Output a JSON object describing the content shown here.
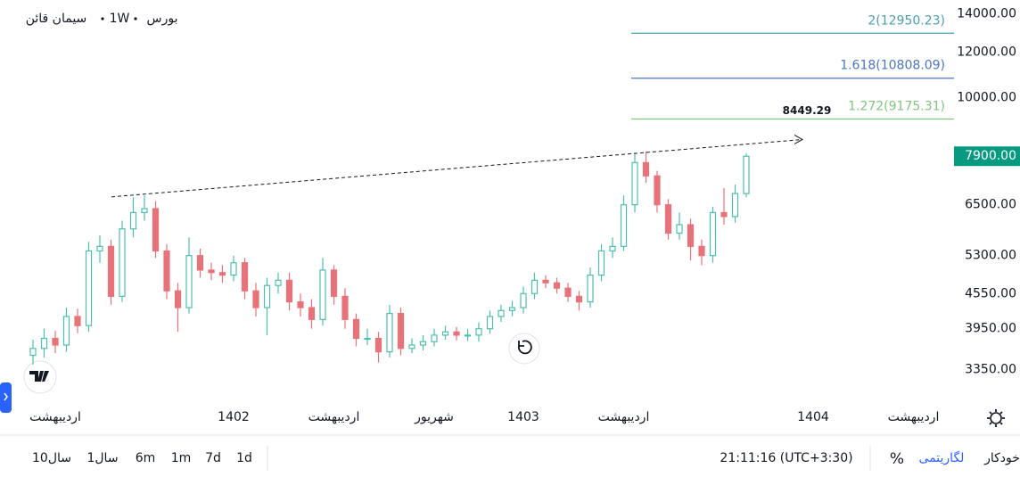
{
  "header": {
    "exchange": "بورس",
    "interval": "1W",
    "symbol": "سیمان قائن"
  },
  "chart_data": {
    "type": "candlestick",
    "log_scale": true,
    "grid": false,
    "up_color": "#4dbfae",
    "down_color": "#e8727a",
    "ylim": [
      2900,
      14800
    ],
    "yticks": [
      {
        "value": 3350,
        "label": "3350.00"
      },
      {
        "value": 3950,
        "label": "3950.00"
      },
      {
        "value": 4550,
        "label": "4550.00"
      },
      {
        "value": 5300,
        "label": "5300.00"
      },
      {
        "value": 6500,
        "label": "6500.00"
      },
      {
        "value": 10000,
        "label": "10000.00"
      },
      {
        "value": 12000,
        "label": "12000.00"
      },
      {
        "value": 14000,
        "label": "14000.00"
      }
    ],
    "last_price": {
      "value": 7900,
      "label": "7900.00",
      "color": "#089981"
    },
    "categories": [
      null,
      null,
      "اردیبهشت",
      null,
      null,
      null,
      null,
      null,
      null,
      null,
      null,
      null,
      null,
      null,
      null,
      null,
      null,
      null,
      "1402",
      null,
      null,
      null,
      null,
      null,
      null,
      null,
      null,
      "اردیبهشت",
      null,
      null,
      null,
      null,
      null,
      null,
      null,
      null,
      "شهریور",
      null,
      null,
      null,
      null,
      null,
      null,
      null,
      "1403",
      null,
      null,
      null,
      null,
      null,
      null,
      null,
      null,
      "اردیبهشت",
      null,
      null,
      null,
      null,
      null,
      null,
      null,
      null,
      null,
      null,
      null,
      null,
      null,
      null,
      null,
      null,
      "1404",
      null,
      null,
      null,
      null,
      null,
      null,
      null,
      null,
      "اردیبهشت"
    ],
    "open": [
      3550,
      3650,
      3800,
      3700,
      4150,
      4000,
      5400,
      5500,
      4500,
      5900,
      6300,
      6400,
      5400,
      4600,
      4300,
      5300,
      5000,
      4950,
      4900,
      5150,
      4600,
      4300,
      4700,
      4800,
      4400,
      4300,
      4100,
      5000,
      4500,
      4100,
      3800,
      3800,
      3600,
      4200,
      3650,
      3700,
      3750,
      3850,
      3900,
      3850,
      3850,
      3950,
      4150,
      4250,
      4300,
      4550,
      4800,
      4750,
      4650,
      4500,
      4400,
      4900,
      5400,
      5500,
      6500,
      7700,
      7300,
      6500,
      5800,
      6000,
      5500,
      5300,
      6300,
      6200,
      6800,
      null,
      null,
      null,
      null,
      null,
      null,
      null,
      null,
      null,
      null,
      null,
      null,
      null,
      null,
      null
    ],
    "high": [
      3780,
      3950,
      3920,
      4300,
      4280,
      5600,
      5750,
      5650,
      6100,
      6700,
      6750,
      6600,
      5550,
      4750,
      5700,
      5450,
      5150,
      5100,
      5300,
      5250,
      4750,
      4850,
      4950,
      4950,
      4550,
      4450,
      5250,
      5100,
      4650,
      4200,
      3950,
      3900,
      4350,
      4300,
      3800,
      3850,
      3950,
      4000,
      3980,
      3950,
      4050,
      4250,
      4350,
      4420,
      4680,
      4950,
      4900,
      4850,
      4750,
      4600,
      5050,
      5550,
      5700,
      6750,
      8000,
      8050,
      7450,
      6650,
      6300,
      6150,
      5650,
      6450,
      6950,
      7050,
      8000,
      null,
      null,
      null,
      null,
      null,
      null,
      null,
      null,
      null,
      null,
      null,
      null,
      null,
      null,
      null
    ],
    "low": [
      3420,
      3520,
      3580,
      3600,
      3880,
      3900,
      5150,
      4350,
      4400,
      5700,
      6100,
      5250,
      4450,
      3900,
      4200,
      4850,
      4800,
      4750,
      4780,
      4450,
      4150,
      3850,
      4550,
      4250,
      4150,
      3950,
      4000,
      4350,
      3950,
      3680,
      3700,
      3450,
      3520,
      3550,
      3580,
      3620,
      3680,
      3780,
      3770,
      3760,
      3750,
      3870,
      4060,
      4150,
      4200,
      4450,
      4650,
      4550,
      4400,
      4250,
      4300,
      4780,
      5250,
      5400,
      6300,
      7100,
      6300,
      5650,
      5650,
      5200,
      5100,
      5150,
      6000,
      6050,
      6700,
      null,
      null,
      null,
      null,
      null,
      null,
      null,
      null,
      null,
      null,
      null,
      null,
      null,
      null,
      null
    ],
    "close": [
      3650,
      3800,
      3700,
      4150,
      4000,
      5400,
      5500,
      4500,
      5900,
      6300,
      6400,
      5400,
      4600,
      4300,
      5300,
      5000,
      4950,
      4900,
      5150,
      4600,
      4300,
      4700,
      4800,
      4400,
      4300,
      4100,
      5000,
      4500,
      4100,
      3800,
      3800,
      3600,
      4200,
      3650,
      3700,
      3750,
      3850,
      3900,
      3850,
      3850,
      3950,
      4150,
      4250,
      4300,
      4550,
      4800,
      4750,
      4650,
      4500,
      4400,
      4900,
      5400,
      5500,
      6500,
      7700,
      7300,
      6500,
      5800,
      6000,
      5500,
      5300,
      6300,
      6200,
      6800,
      7900,
      null,
      null,
      null,
      null,
      null,
      null,
      null,
      null,
      null,
      null,
      null,
      null,
      null,
      null,
      null
    ],
    "fib_levels": [
      {
        "value": 12950.23,
        "label": "2(12950.23)",
        "color": "#4a9fb0"
      },
      {
        "value": 10808.09,
        "label": "1.618(10808.09)",
        "color": "#4a74c4"
      },
      {
        "value": 9175.31,
        "label": "1.272(9175.31)",
        "color": "#82c47f"
      }
    ],
    "trendline": {
      "start_value": 6710,
      "end_value": 8449.29
    }
  },
  "toolbar": {
    "ranges": [
      "10سال",
      "1سال",
      "6m",
      "1m",
      "7d",
      "1d"
    ],
    "time": "21:11:16 (UTC+3:30)",
    "percent": "%",
    "log": "لگاریتمی",
    "auto": "خودکار"
  }
}
